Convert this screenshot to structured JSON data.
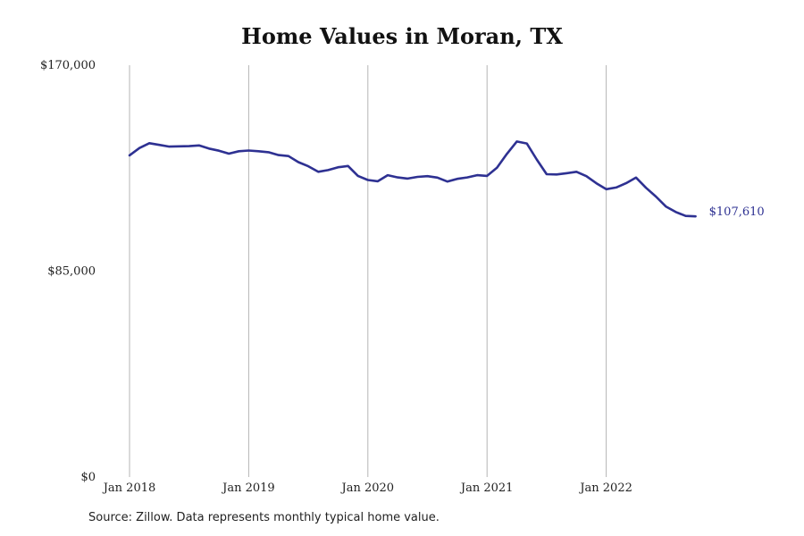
{
  "chart_data": {
    "type": "line",
    "title": "Home Values in Moran, TX",
    "xlabel": "",
    "ylabel": "",
    "ylim": [
      0,
      170000
    ],
    "y_ticks": [
      0,
      85000,
      170000
    ],
    "y_tick_labels": [
      "$0",
      "$85,000",
      "$170,000"
    ],
    "x_ticks": [
      "2018-01",
      "2019-01",
      "2020-01",
      "2021-01",
      "2022-01"
    ],
    "x_tick_labels": [
      "Jan 2018",
      "Jan 2019",
      "Jan 2020",
      "Jan 2021",
      "Jan 2022"
    ],
    "grid": "vertical at x ticks",
    "legend": "none",
    "line_color": "#2e3192",
    "end_label": "$107,610",
    "series": [
      {
        "x": [
          "2018-01",
          "2018-02",
          "2018-03",
          "2018-04",
          "2018-05",
          "2018-06",
          "2018-07",
          "2018-08",
          "2018-09",
          "2018-10",
          "2018-11",
          "2018-12",
          "2019-01",
          "2019-02",
          "2019-03",
          "2019-04",
          "2019-05",
          "2019-06",
          "2019-07",
          "2019-08",
          "2019-09",
          "2019-10",
          "2019-11",
          "2019-12",
          "2020-01",
          "2020-02",
          "2020-03",
          "2020-04",
          "2020-05",
          "2020-06",
          "2020-07",
          "2020-08",
          "2020-09",
          "2020-10",
          "2020-11",
          "2020-12",
          "2021-01",
          "2021-02",
          "2021-03",
          "2021-04",
          "2021-05",
          "2021-06",
          "2021-07",
          "2021-08",
          "2021-09",
          "2021-10",
          "2021-11",
          "2021-12",
          "2022-01",
          "2022-02",
          "2022-03",
          "2022-04",
          "2022-05",
          "2022-06",
          "2022-07",
          "2022-08",
          "2022-09",
          "2022-10"
        ],
        "values": [
          132800,
          135800,
          137800,
          137100,
          136400,
          136500,
          136600,
          136900,
          135600,
          134700,
          133500,
          134500,
          134800,
          134500,
          134100,
          132900,
          132500,
          130000,
          128300,
          126000,
          126700,
          127900,
          128400,
          124300,
          122600,
          122100,
          124600,
          123700,
          123200,
          123900,
          124200,
          123600,
          122000,
          123100,
          123700,
          124600,
          124300,
          127700,
          133400,
          138500,
          137700,
          131100,
          125000,
          124900,
          125400,
          126000,
          124200,
          121300,
          118800,
          119500,
          121300,
          123600,
          119400,
          115800,
          111700,
          109400,
          107800,
          107610
        ]
      }
    ]
  },
  "source_note": "Source: Zillow. Data represents monthly typical home value."
}
